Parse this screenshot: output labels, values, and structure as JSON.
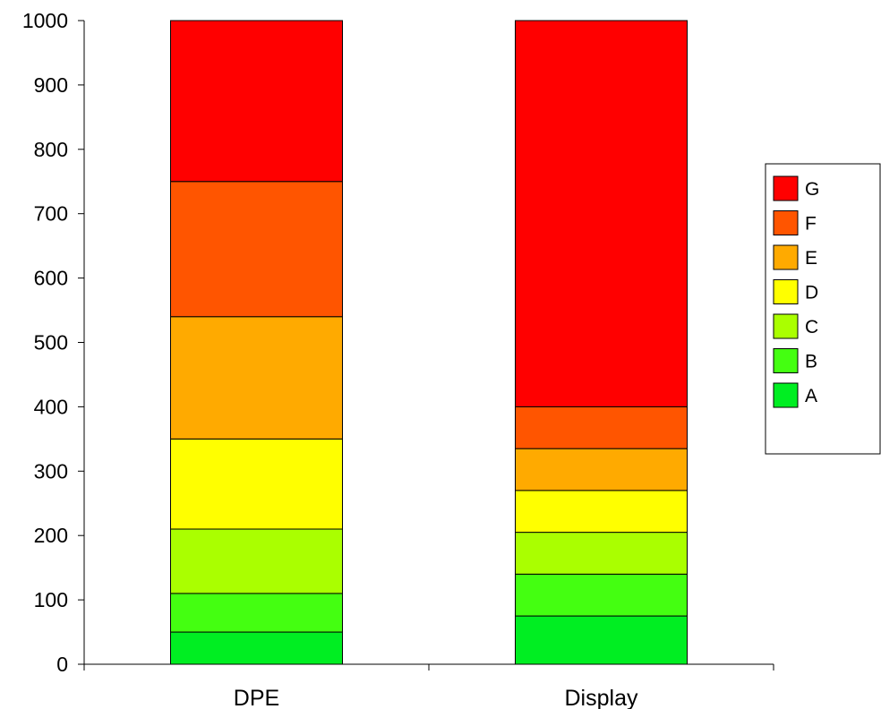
{
  "chart_data": {
    "type": "bar",
    "stacked": true,
    "categories": [
      "DPE",
      "Display"
    ],
    "series": [
      {
        "name": "A",
        "values": [
          50,
          75
        ],
        "color": "#00ee22"
      },
      {
        "name": "B",
        "values": [
          60,
          65
        ],
        "color": "#44ff11"
      },
      {
        "name": "C",
        "values": [
          100,
          65
        ],
        "color": "#aaff00"
      },
      {
        "name": "D",
        "values": [
          140,
          65
        ],
        "color": "#ffff00"
      },
      {
        "name": "E",
        "values": [
          190,
          65
        ],
        "color": "#ffaa00"
      },
      {
        "name": "F",
        "values": [
          210,
          65
        ],
        "color": "#ff5500"
      },
      {
        "name": "G",
        "values": [
          250,
          600
        ],
        "color": "#ff0000"
      }
    ],
    "ylim": [
      0,
      1000
    ],
    "yticks": [
      "0",
      "100",
      "200",
      "300",
      "400",
      "500",
      "600",
      "700",
      "800",
      "900",
      "1000"
    ],
    "grid": false,
    "legend_position": "right",
    "legend_order": [
      "G",
      "F",
      "E",
      "D",
      "C",
      "B",
      "A"
    ]
  }
}
